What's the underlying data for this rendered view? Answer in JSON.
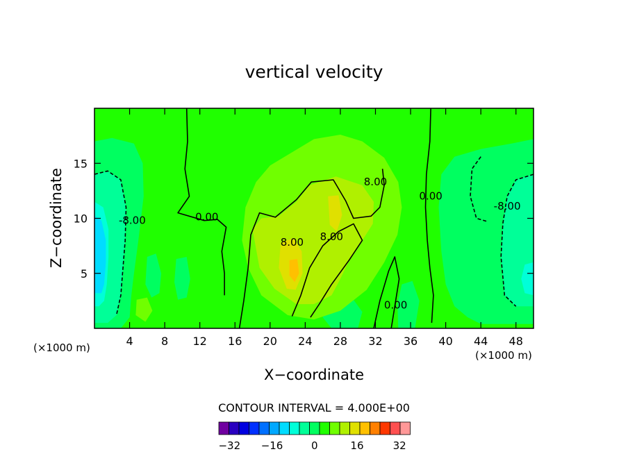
{
  "chart_data": {
    "type": "heatmap",
    "title": "vertical velocity",
    "xlabel": "X−coordinate",
    "ylabel": "Z−coordinate",
    "x_unit_left": "(×1000 m)",
    "x_unit_right": "(×1000 m)",
    "xlim": [
      0,
      50
    ],
    "ylim": [
      0,
      20
    ],
    "x_ticks": [
      4,
      8,
      12,
      16,
      20,
      24,
      28,
      32,
      36,
      40,
      44,
      48
    ],
    "y_ticks": [
      5,
      10,
      15
    ],
    "contour_interval_text": "CONTOUR INTERVAL = 4.000E+00",
    "contour_labels": [
      {
        "text": "8.00",
        "x": 32,
        "y": 13
      },
      {
        "text": "8.00",
        "x": 27,
        "y": 8
      },
      {
        "text": "8.00",
        "x": 22.5,
        "y": 7.5
      },
      {
        "text": "0.00",
        "x": 12.8,
        "y": 9.8
      },
      {
        "text": "0.00",
        "x": 38.3,
        "y": 11.7
      },
      {
        "text": "0.00",
        "x": 34.3,
        "y": 1.8
      },
      {
        "text": "-8.00",
        "x": 4.3,
        "y": 9.5
      },
      {
        "text": "-8.00",
        "x": 47,
        "y": 10.8
      }
    ],
    "colorbar": {
      "levels": [
        -36,
        -32,
        -28,
        -24,
        -20,
        -16,
        -12,
        -8,
        -4,
        0,
        4,
        8,
        12,
        16,
        20,
        24,
        28,
        32,
        36
      ],
      "tick_labels": [
        "−32",
        "−16",
        "0",
        "16",
        "32"
      ],
      "tick_values": [
        -32,
        -16,
        0,
        16,
        32
      ],
      "colors": [
        "#7000a0",
        "#2a00c0",
        "#0000e0",
        "#0030ff",
        "#0070ff",
        "#00a8ff",
        "#00dcff",
        "#00ffd8",
        "#00ff98",
        "#00ff60",
        "#20ff00",
        "#70ff00",
        "#b0f000",
        "#e0e000",
        "#ffc000",
        "#ff8000",
        "#ff3800",
        "#ff5050",
        "#ff9898"
      ]
    },
    "field_colors": {
      "w_0_4": "#20ff00",
      "w_4_8": "#70ff00",
      "w_8_12": "#b0f000",
      "w_12_16": "#e0e000",
      "w_16_20": "#ffc000",
      "w_-4_0": "#00ff60",
      "w_-8_-4": "#00ff98",
      "w_-12_-8": "#00ffd8",
      "w_-16_-12": "#00dcff"
    }
  }
}
